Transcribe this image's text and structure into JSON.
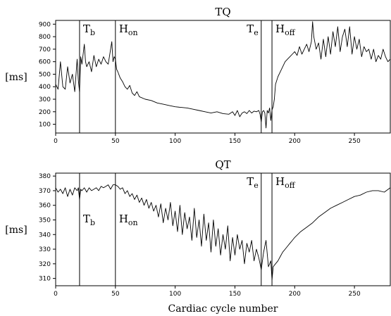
{
  "chart_data": [
    {
      "type": "line",
      "title": "TQ",
      "ylabel": "[ms]",
      "xlabel": "",
      "xlim": [
        0,
        280
      ],
      "ylim": [
        30,
        930
      ],
      "xticks": [
        0,
        50,
        100,
        150,
        200,
        250
      ],
      "yticks": [
        100,
        200,
        300,
        400,
        500,
        600,
        700,
        800,
        900
      ],
      "markers": [
        {
          "x": 20,
          "label": "T",
          "sub": "b"
        },
        {
          "x": 50,
          "label": "H",
          "sub": "on"
        },
        {
          "x": 172,
          "label": "T",
          "sub": "e"
        },
        {
          "x": 181,
          "label": "H",
          "sub": "off"
        }
      ],
      "series": [
        {
          "x": [
            0,
            2,
            4,
            6,
            8,
            10,
            12,
            14,
            16,
            18,
            19,
            20,
            21,
            22,
            24,
            25,
            26,
            28,
            30,
            32,
            34,
            36,
            38,
            40,
            42,
            44,
            46,
            47,
            48,
            49,
            50,
            51,
            52,
            54,
            56,
            58,
            60,
            62,
            64,
            66,
            68,
            70,
            75,
            80,
            85,
            90,
            95,
            100,
            105,
            110,
            115,
            120,
            125,
            130,
            135,
            140,
            145,
            148,
            150,
            152,
            154,
            156,
            158,
            160,
            162,
            164,
            166,
            168,
            170,
            171,
            172,
            173,
            174,
            175,
            176,
            177,
            178,
            179,
            180,
            181,
            182,
            183,
            184,
            186,
            188,
            190,
            192,
            194,
            196,
            198,
            200,
            202,
            204,
            206,
            208,
            210,
            212,
            214,
            215,
            216,
            218,
            220,
            222,
            224,
            226,
            228,
            230,
            232,
            234,
            236,
            238,
            240,
            242,
            244,
            246,
            248,
            250,
            252,
            254,
            256,
            258,
            260,
            262,
            264,
            266,
            268,
            270,
            272,
            274,
            276,
            278,
            280
          ],
          "y": [
            420,
            380,
            600,
            400,
            380,
            560,
            430,
            500,
            360,
            620,
            450,
            360,
            640,
            580,
            740,
            600,
            560,
            600,
            520,
            650,
            560,
            620,
            580,
            640,
            600,
            580,
            700,
            760,
            600,
            640,
            620,
            540,
            520,
            470,
            440,
            400,
            380,
            410,
            350,
            330,
            360,
            320,
            300,
            290,
            270,
            260,
            250,
            240,
            235,
            230,
            220,
            210,
            200,
            190,
            200,
            185,
            180,
            200,
            170,
            210,
            160,
            190,
            200,
            185,
            210,
            190,
            205,
            200,
            210,
            180,
            120,
            200,
            210,
            190,
            70,
            210,
            190,
            230,
            130,
            215,
            240,
            300,
            420,
            480,
            520,
            560,
            600,
            620,
            640,
            660,
            680,
            650,
            720,
            660,
            700,
            740,
            680,
            760,
            920,
            800,
            700,
            750,
            620,
            780,
            640,
            800,
            660,
            840,
            720,
            880,
            680,
            800,
            860,
            720,
            880,
            660,
            800,
            700,
            780,
            640,
            720,
            680,
            700,
            620,
            700,
            600,
            650,
            620,
            700,
            640,
            600,
            620
          ]
        }
      ]
    },
    {
      "type": "line",
      "title": "QT",
      "ylabel": "[ms]",
      "xlabel": "Cardiac cycle number",
      "xlim": [
        0,
        280
      ],
      "ylim": [
        305,
        382
      ],
      "xticks": [
        0,
        50,
        100,
        150,
        200,
        250
      ],
      "yticks": [
        310,
        320,
        330,
        340,
        350,
        360,
        370,
        380
      ],
      "markers": [
        {
          "x": 20,
          "label": "T",
          "sub": "b"
        },
        {
          "x": 50,
          "label": "H",
          "sub": "on"
        },
        {
          "x": 172,
          "label": "T",
          "sub": "e"
        },
        {
          "x": 181,
          "label": "H",
          "sub": "off"
        }
      ],
      "series": [
        {
          "x": [
            0,
            2,
            4,
            6,
            8,
            10,
            12,
            14,
            16,
            18,
            19,
            20,
            21,
            22,
            24,
            26,
            28,
            30,
            32,
            34,
            36,
            38,
            40,
            42,
            44,
            46,
            48,
            50,
            52,
            54,
            56,
            58,
            60,
            62,
            64,
            66,
            68,
            70,
            72,
            74,
            76,
            78,
            80,
            82,
            84,
            86,
            88,
            90,
            92,
            94,
            96,
            98,
            100,
            102,
            104,
            106,
            108,
            110,
            112,
            114,
            116,
            118,
            120,
            122,
            124,
            126,
            128,
            130,
            132,
            134,
            136,
            138,
            140,
            142,
            144,
            146,
            148,
            150,
            152,
            154,
            156,
            158,
            160,
            162,
            164,
            166,
            168,
            170,
            172,
            174,
            176,
            178,
            180,
            181,
            182,
            184,
            186,
            188,
            190,
            192,
            194,
            196,
            198,
            200,
            205,
            210,
            215,
            220,
            225,
            230,
            235,
            240,
            245,
            250,
            255,
            260,
            265,
            270,
            275,
            280
          ],
          "y": [
            372,
            369,
            371,
            368,
            372,
            366,
            371,
            367,
            372,
            370,
            372,
            364,
            371,
            370,
            372,
            369,
            372,
            370,
            371,
            372,
            370,
            373,
            372,
            373,
            374,
            371,
            374,
            374,
            373,
            371,
            372,
            368,
            370,
            366,
            368,
            364,
            367,
            362,
            365,
            360,
            364,
            358,
            362,
            356,
            360,
            352,
            361,
            348,
            358,
            350,
            362,
            346,
            356,
            342,
            360,
            340,
            355,
            344,
            352,
            336,
            358,
            338,
            350,
            332,
            354,
            336,
            348,
            328,
            350,
            332,
            344,
            326,
            340,
            330,
            346,
            322,
            338,
            326,
            340,
            330,
            336,
            320,
            334,
            328,
            336,
            322,
            330,
            324,
            316,
            328,
            336,
            318,
            322,
            309,
            318,
            320,
            322,
            325,
            328,
            330,
            332,
            334,
            336,
            338,
            342,
            345,
            348,
            352,
            355,
            358,
            360,
            362,
            364,
            366,
            367,
            369,
            370,
            370,
            369,
            372
          ]
        }
      ]
    }
  ]
}
